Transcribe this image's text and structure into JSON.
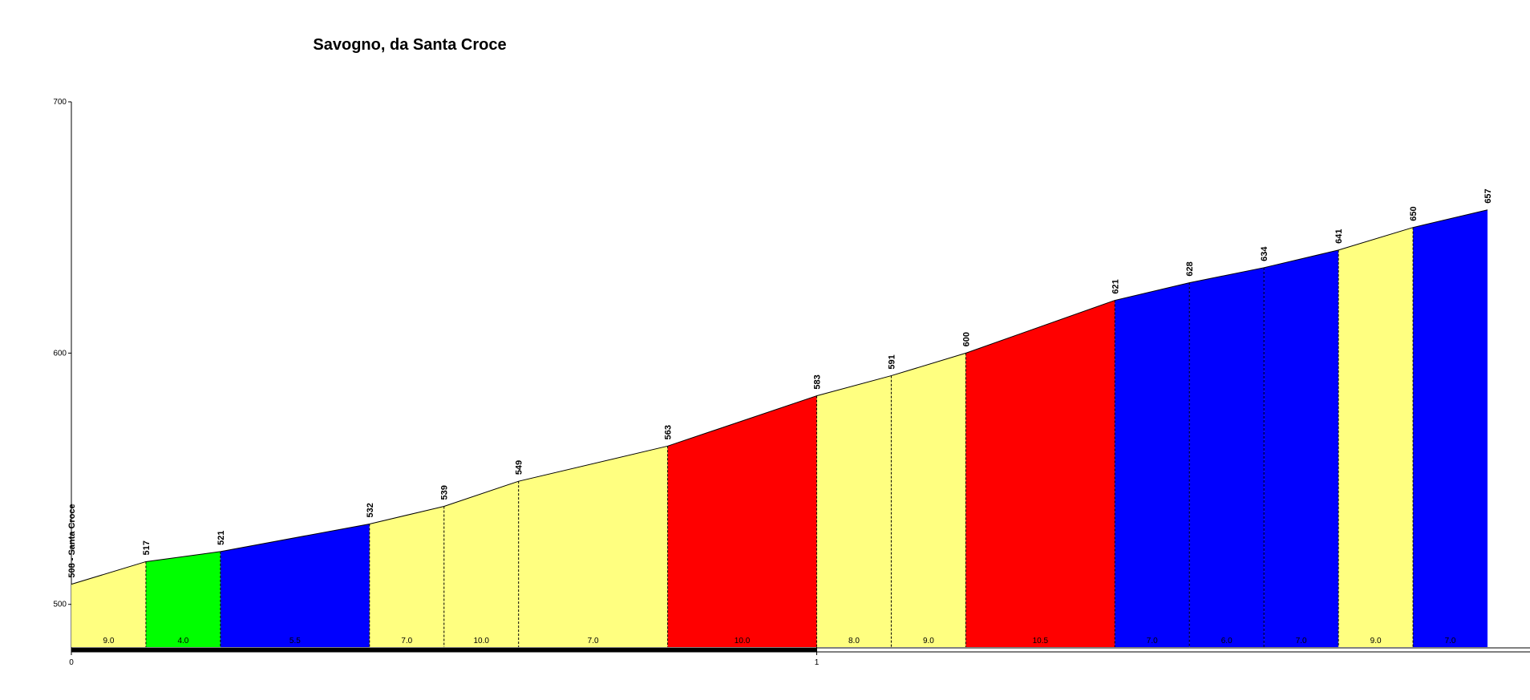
{
  "chart_data": {
    "type": "climb-profile",
    "title": "Savogno, da Santa Croce",
    "x": [
      0,
      0.1,
      0.2,
      0.4,
      0.5,
      0.6,
      0.8,
      1.0,
      1.1,
      1.2,
      1.4,
      1.5,
      1.6,
      1.7,
      1.8,
      1.9
    ],
    "values": [
      508,
      517,
      521,
      532,
      539,
      549,
      563,
      583,
      591,
      600,
      621,
      628,
      634,
      641,
      650,
      657
    ],
    "value_labels": [
      "508 - Santa Croce",
      "517",
      "521",
      "532",
      "539",
      "549",
      "563",
      "583",
      "591",
      "600",
      "621",
      "628",
      "634",
      "641",
      "650",
      "657"
    ],
    "segments": [
      {
        "gradient": 9,
        "label": "9.0",
        "color": "#ffff80"
      },
      {
        "gradient": 4,
        "label": "4.0",
        "color": "#00ff00"
      },
      {
        "gradient": 5.5,
        "label": "5.5",
        "color": "#0000ff"
      },
      {
        "gradient": 7,
        "label": "7.0",
        "color": "#ffff80"
      },
      {
        "gradient": 10,
        "label": "10.0",
        "color": "#ffff80"
      },
      {
        "gradient": 7,
        "label": "7.0",
        "color": "#ffff80"
      },
      {
        "gradient": 10,
        "label": "10.0",
        "color": "#ff0000"
      },
      {
        "gradient": 8,
        "label": "8.0",
        "color": "#ffff80"
      },
      {
        "gradient": 9,
        "label": "9.0",
        "color": "#ffff80"
      },
      {
        "gradient": 10.5,
        "label": "10.5",
        "color": "#ff0000"
      },
      {
        "gradient": 7,
        "label": "7.0",
        "color": "#0000ff"
      },
      {
        "gradient": 6,
        "label": "6.0",
        "color": "#0000ff"
      },
      {
        "gradient": 7,
        "label": "7.0",
        "color": "#0000ff"
      },
      {
        "gradient": 9,
        "label": "9.0",
        "color": "#ffff80"
      },
      {
        "gradient": 7,
        "label": "7.0",
        "color": "#0000ff"
      }
    ],
    "xlim": [
      0,
      1.957
    ],
    "xticks": [
      0,
      1
    ],
    "ylim": [
      483,
      700
    ],
    "yticks": [
      500,
      600,
      700
    ]
  }
}
